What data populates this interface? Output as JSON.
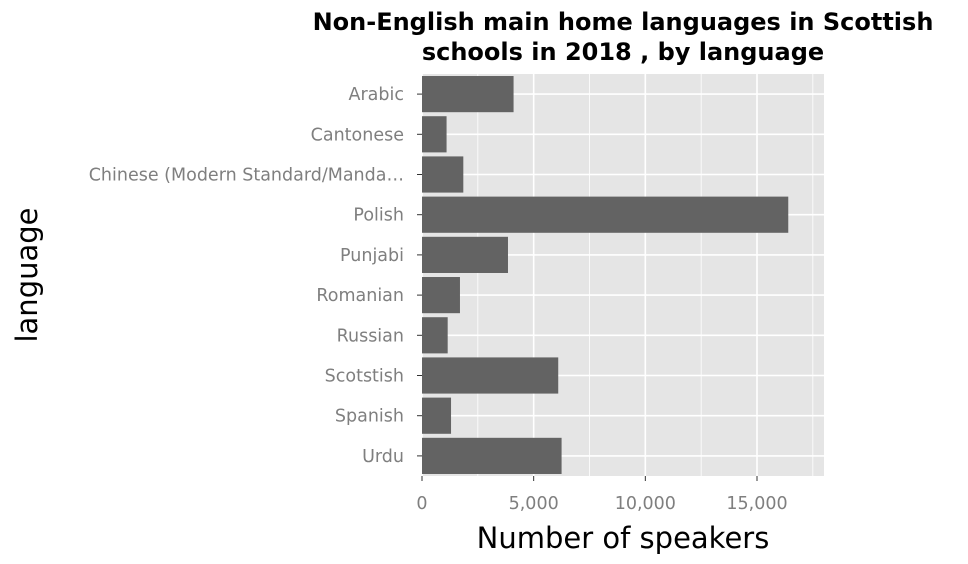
{
  "chart_data": {
    "type": "bar",
    "orientation": "horizontal",
    "title_lines": [
      "Non-English main home languages in Scottish",
      "schools in 2018 , by language"
    ],
    "xlabel": "Number of speakers",
    "ylabel": "language",
    "categories": [
      "Arabic",
      "Cantonese",
      "Chinese (Modern Standard/Manda…",
      "Polish",
      "Punjabi",
      "Romanian",
      "Russian",
      "Scotstish",
      "Spanish",
      "Urdu"
    ],
    "values": [
      4100,
      1100,
      1850,
      16400,
      3850,
      1700,
      1150,
      6100,
      1300,
      6250
    ],
    "xlim": [
      0,
      18000
    ],
    "xticks": [
      0,
      5000,
      10000,
      15000
    ],
    "xtick_labels": [
      "0",
      "5,000",
      "10,000",
      "15,000"
    ],
    "grid": true,
    "colors": {
      "panel": "#e5e5e5",
      "bar": "#636363",
      "grid": "#ffffff"
    }
  }
}
